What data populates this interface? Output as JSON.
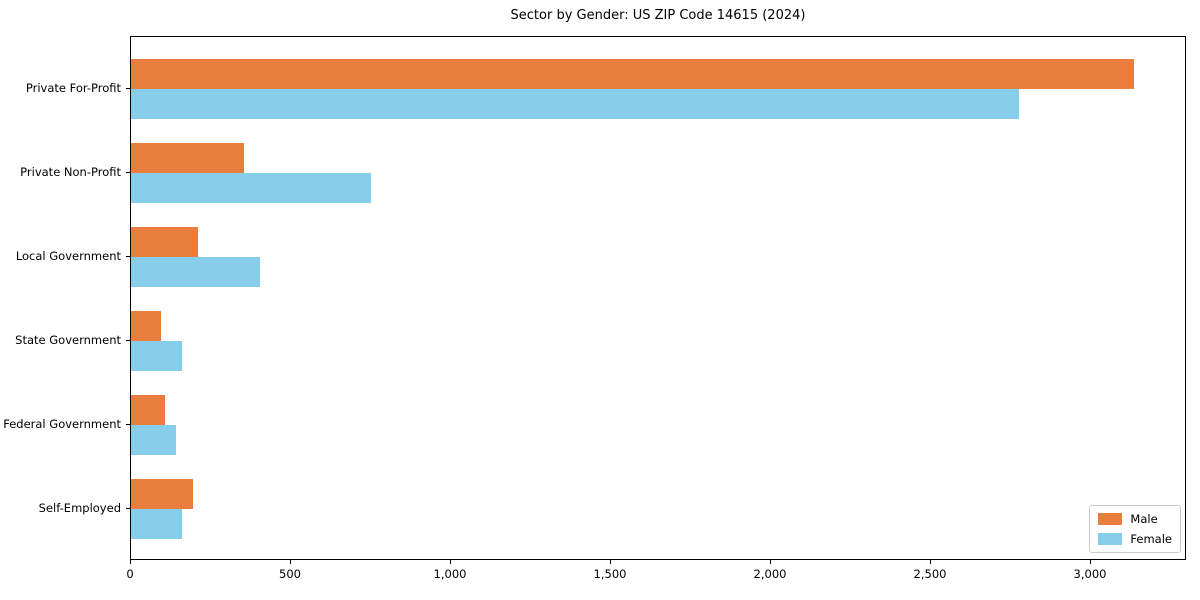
{
  "chart_data": {
    "type": "bar",
    "orientation": "horizontal",
    "title": "Sector by Gender: US ZIP Code 14615 (2024)",
    "categories": [
      "Private For-Profit",
      "Private Non-Profit",
      "Local Government",
      "State Government",
      "Federal Government",
      "Self-Employed"
    ],
    "series": [
      {
        "name": "Male",
        "color": "#E97D3D",
        "values": [
          3140,
          355,
          210,
          95,
          105,
          195
        ]
      },
      {
        "name": "Female",
        "color": "#87CEEB",
        "values": [
          2780,
          750,
          405,
          160,
          140,
          160
        ]
      }
    ],
    "xlabel": "",
    "ylabel": "",
    "xlim": [
      0,
      3300
    ],
    "xticks": [
      {
        "value": 0,
        "label": "0"
      },
      {
        "value": 500,
        "label": "500"
      },
      {
        "value": 1000,
        "label": "1,000"
      },
      {
        "value": 1500,
        "label": "1,500"
      },
      {
        "value": 2000,
        "label": "2,000"
      },
      {
        "value": 2500,
        "label": "2,500"
      },
      {
        "value": 3000,
        "label": "3,000"
      }
    ],
    "grid": false,
    "legend": {
      "position": "lower right",
      "entries": [
        {
          "label": "Male",
          "color": "#E97D3D"
        },
        {
          "label": "Female",
          "color": "#87CEEB"
        }
      ]
    }
  }
}
